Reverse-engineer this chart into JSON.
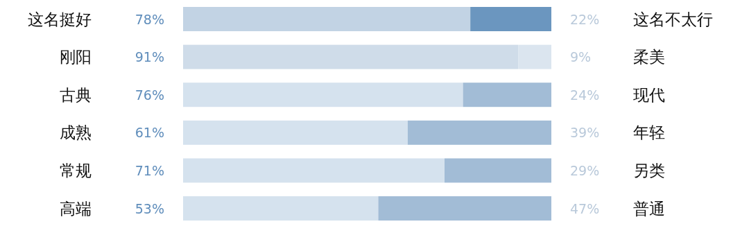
{
  "chart_data": {
    "type": "bar",
    "orientation": "horizontal",
    "stacked": true,
    "categories": [
      "这名挺好",
      "刚阳",
      "古典",
      "成熟",
      "常规",
      "高端"
    ],
    "series": [
      {
        "values": [
          78,
          91,
          76,
          61,
          71,
          53
        ],
        "colors": [
          "#c2d3e4",
          "#cfdce9",
          "#d5e2ee",
          "#d5e2ee",
          "#d5e2ee",
          "#d5e2ee"
        ],
        "value_labels": [
          "78%",
          "91%",
          "76%",
          "61%",
          "71%",
          "53%"
        ]
      },
      {
        "values": [
          22,
          9,
          24,
          39,
          29,
          47
        ],
        "colors": [
          "#6b96bf",
          "#dbe5ef",
          "#a2bcd6",
          "#a2bcd6",
          "#a2bcd6",
          "#a2bcd6"
        ],
        "value_labels": [
          "22%",
          "9%",
          "24%",
          "39%",
          "29%",
          "47%"
        ]
      }
    ],
    "annotations": [
      "这名不太行",
      "柔美",
      "现代",
      "年轻",
      "另类",
      "普通"
    ]
  }
}
